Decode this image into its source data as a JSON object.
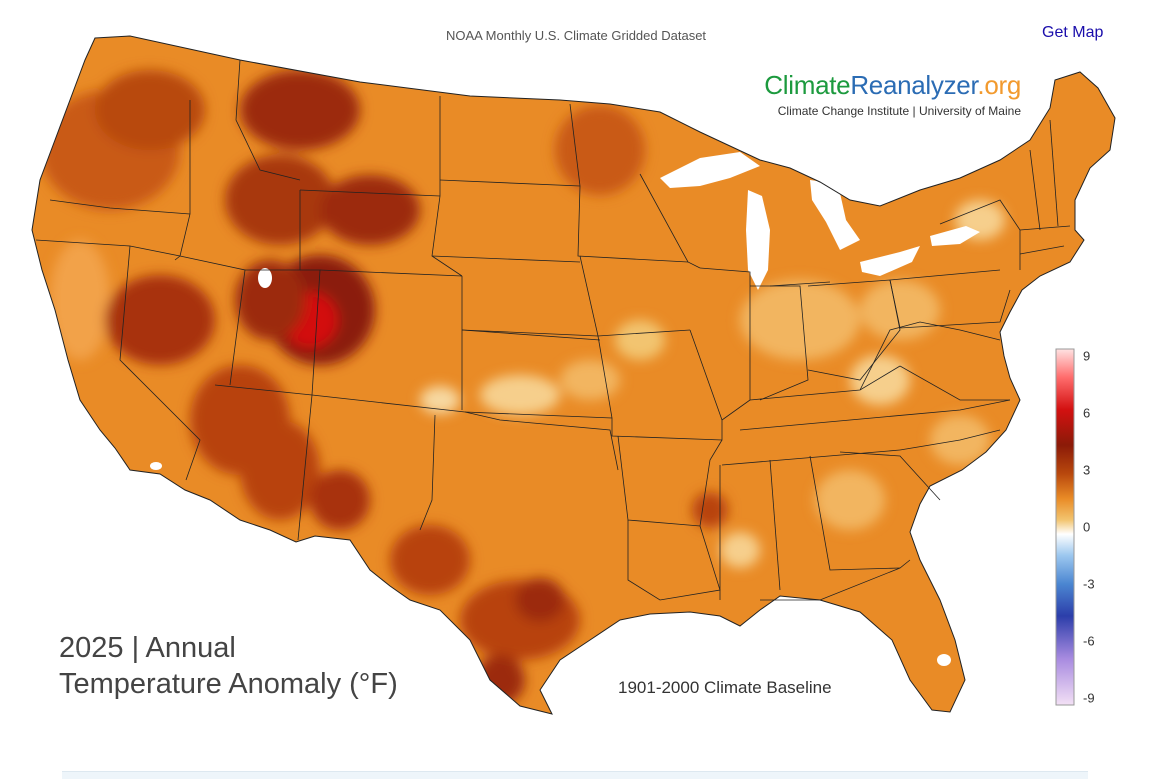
{
  "header": {
    "dataset_title": "NOAA Monthly U.S. Climate Gridded Dataset",
    "get_map_label": "Get Map"
  },
  "brand": {
    "logo_part1": "Climate",
    "logo_part2": "Reanalyzer",
    "logo_part3": ".org",
    "subtitle": "Climate Change Institute | University of Maine",
    "colors": {
      "climate": "#1c9a3e",
      "reanalyzer": "#2b6cb4",
      "org": "#f29a2e"
    }
  },
  "map": {
    "title_line1": "2025 | Annual",
    "title_line2": "Temperature Anomaly (°F)",
    "baseline": "1901-2000 Climate Baseline",
    "background_fill": "#e98b26",
    "state_border_color": "#222222"
  },
  "legend": {
    "ticks": [
      "9",
      "6",
      "3",
      "0",
      "-3",
      "-6",
      "-9"
    ],
    "range": [
      -9,
      9
    ],
    "colors": [
      "#f3e0f5",
      "#a88be0",
      "#2c3eaa",
      "#4b86d1",
      "#9cc7ef",
      "#ffffff",
      "#f2c46f",
      "#e98b26",
      "#b8480d",
      "#8b1a08",
      "#d31111",
      "#ff6c6c",
      "#ffe2e2"
    ]
  }
}
